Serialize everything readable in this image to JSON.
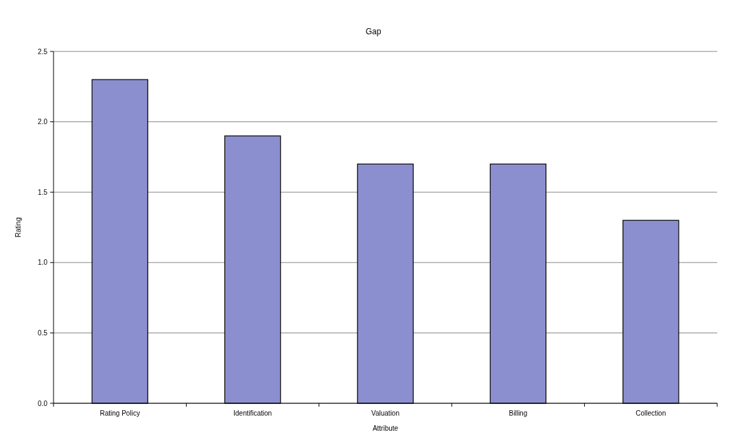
{
  "chart_data": {
    "type": "bar",
    "title": "Gap",
    "xlabel": "Attribute",
    "ylabel": "Rating",
    "categories": [
      "Rating Policy",
      "Identification",
      "Valuation",
      "Billing",
      "Collection"
    ],
    "values": [
      2.3,
      1.9,
      1.7,
      1.7,
      1.3
    ],
    "color": "#8c8fcf",
    "ylim": [
      0,
      2.5
    ],
    "yticks": [
      {
        "value": 0,
        "label": "0.0"
      },
      {
        "value": 0.5,
        "label": "0.5"
      },
      {
        "value": 1,
        "label": "1.0"
      },
      {
        "value": 1.5,
        "label": "1.5"
      },
      {
        "value": 2,
        "label": "2.0"
      },
      {
        "value": 2.5,
        "label": "2.5"
      }
    ],
    "grid": "y"
  }
}
